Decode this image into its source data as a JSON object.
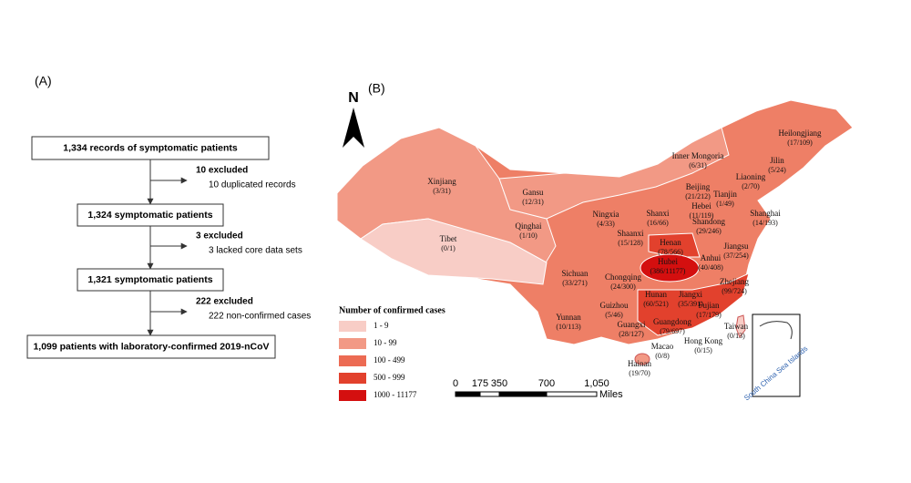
{
  "panel_a": {
    "label": "(A)",
    "boxes": [
      "1,334 records of symptomatic patients",
      "1,324 symptomatic patients",
      "1,321 symptomatic patients",
      "1,099 patients with laboratory-confirmed 2019-nCoV"
    ],
    "exclusions": [
      {
        "title": "10 excluded",
        "detail": "10 duplicated records"
      },
      {
        "title": "3 excluded",
        "detail": "3 lacked core data sets"
      },
      {
        "title": "222 excluded",
        "detail": "222 non-confirmed cases"
      }
    ]
  },
  "panel_b": {
    "label": "(B)",
    "north": "N",
    "provinces": [
      {
        "name": "Xinjiang",
        "counts": "(3/31)"
      },
      {
        "name": "Tibet",
        "counts": "(0/1)"
      },
      {
        "name": "Qinghai",
        "counts": "(1/10)"
      },
      {
        "name": "Gansu",
        "counts": "(12/31)"
      },
      {
        "name": "Inner Mongoria",
        "counts": "(6/31)"
      },
      {
        "name": "Heilongjiang",
        "counts": "(17/109)"
      },
      {
        "name": "Jilin",
        "counts": "(5/24)"
      },
      {
        "name": "Liaoning",
        "counts": "(2/70)"
      },
      {
        "name": "Beijing",
        "counts": "(21/212)"
      },
      {
        "name": "Tianjin",
        "counts": "(1/49)"
      },
      {
        "name": "Hebei",
        "counts": "(11/119)"
      },
      {
        "name": "Ningxia",
        "counts": "(4/33)"
      },
      {
        "name": "Shanxi",
        "counts": "(16/66)"
      },
      {
        "name": "Shandong",
        "counts": "(29/246)"
      },
      {
        "name": "Shanghai",
        "counts": "(14/193)"
      },
      {
        "name": "Shaanxi",
        "counts": "(15/128)"
      },
      {
        "name": "Henan",
        "counts": "(78/566)"
      },
      {
        "name": "Jiangsu",
        "counts": "(37/254)"
      },
      {
        "name": "Hubei",
        "counts": "(386/11177)"
      },
      {
        "name": "Anhui",
        "counts": "(40/408)"
      },
      {
        "name": "Sichuan",
        "counts": "(33/271)"
      },
      {
        "name": "Chongqing",
        "counts": "(24/300)"
      },
      {
        "name": "Zhejiang",
        "counts": "(99/724)"
      },
      {
        "name": "Guizhou",
        "counts": "(5/46)"
      },
      {
        "name": "Hunan",
        "counts": "(60/521)"
      },
      {
        "name": "Jiangxi",
        "counts": "(35/391)"
      },
      {
        "name": "Fujian",
        "counts": "(17/179)"
      },
      {
        "name": "Yunnan",
        "counts": "(10/113)"
      },
      {
        "name": "Guangxi",
        "counts": "(28/127)"
      },
      {
        "name": "Guangdong",
        "counts": "(79/697)"
      },
      {
        "name": "Taiwan",
        "counts": "(0/13)"
      },
      {
        "name": "Hong Kong",
        "counts": "(0/15)"
      },
      {
        "name": "Macao",
        "counts": "(0/8)"
      },
      {
        "name": "Hainan",
        "counts": "(19/70)"
      }
    ],
    "legend": {
      "title": "Number of confirmed cases",
      "items": [
        {
          "label": "1 - 9",
          "color": "#f8cdc6"
        },
        {
          "label": "10 - 99",
          "color": "#f29985"
        },
        {
          "label": "100 - 499",
          "color": "#ec6b53"
        },
        {
          "label": "500 - 999",
          "color": "#e2412d"
        },
        {
          "label": "1000 - 11177",
          "color": "#d40f0f"
        }
      ]
    },
    "scale": {
      "ticks": [
        "0",
        "175",
        "350",
        "700",
        "1,050"
      ],
      "unit": "Miles"
    },
    "inset_label": "South China Sea Islands"
  }
}
